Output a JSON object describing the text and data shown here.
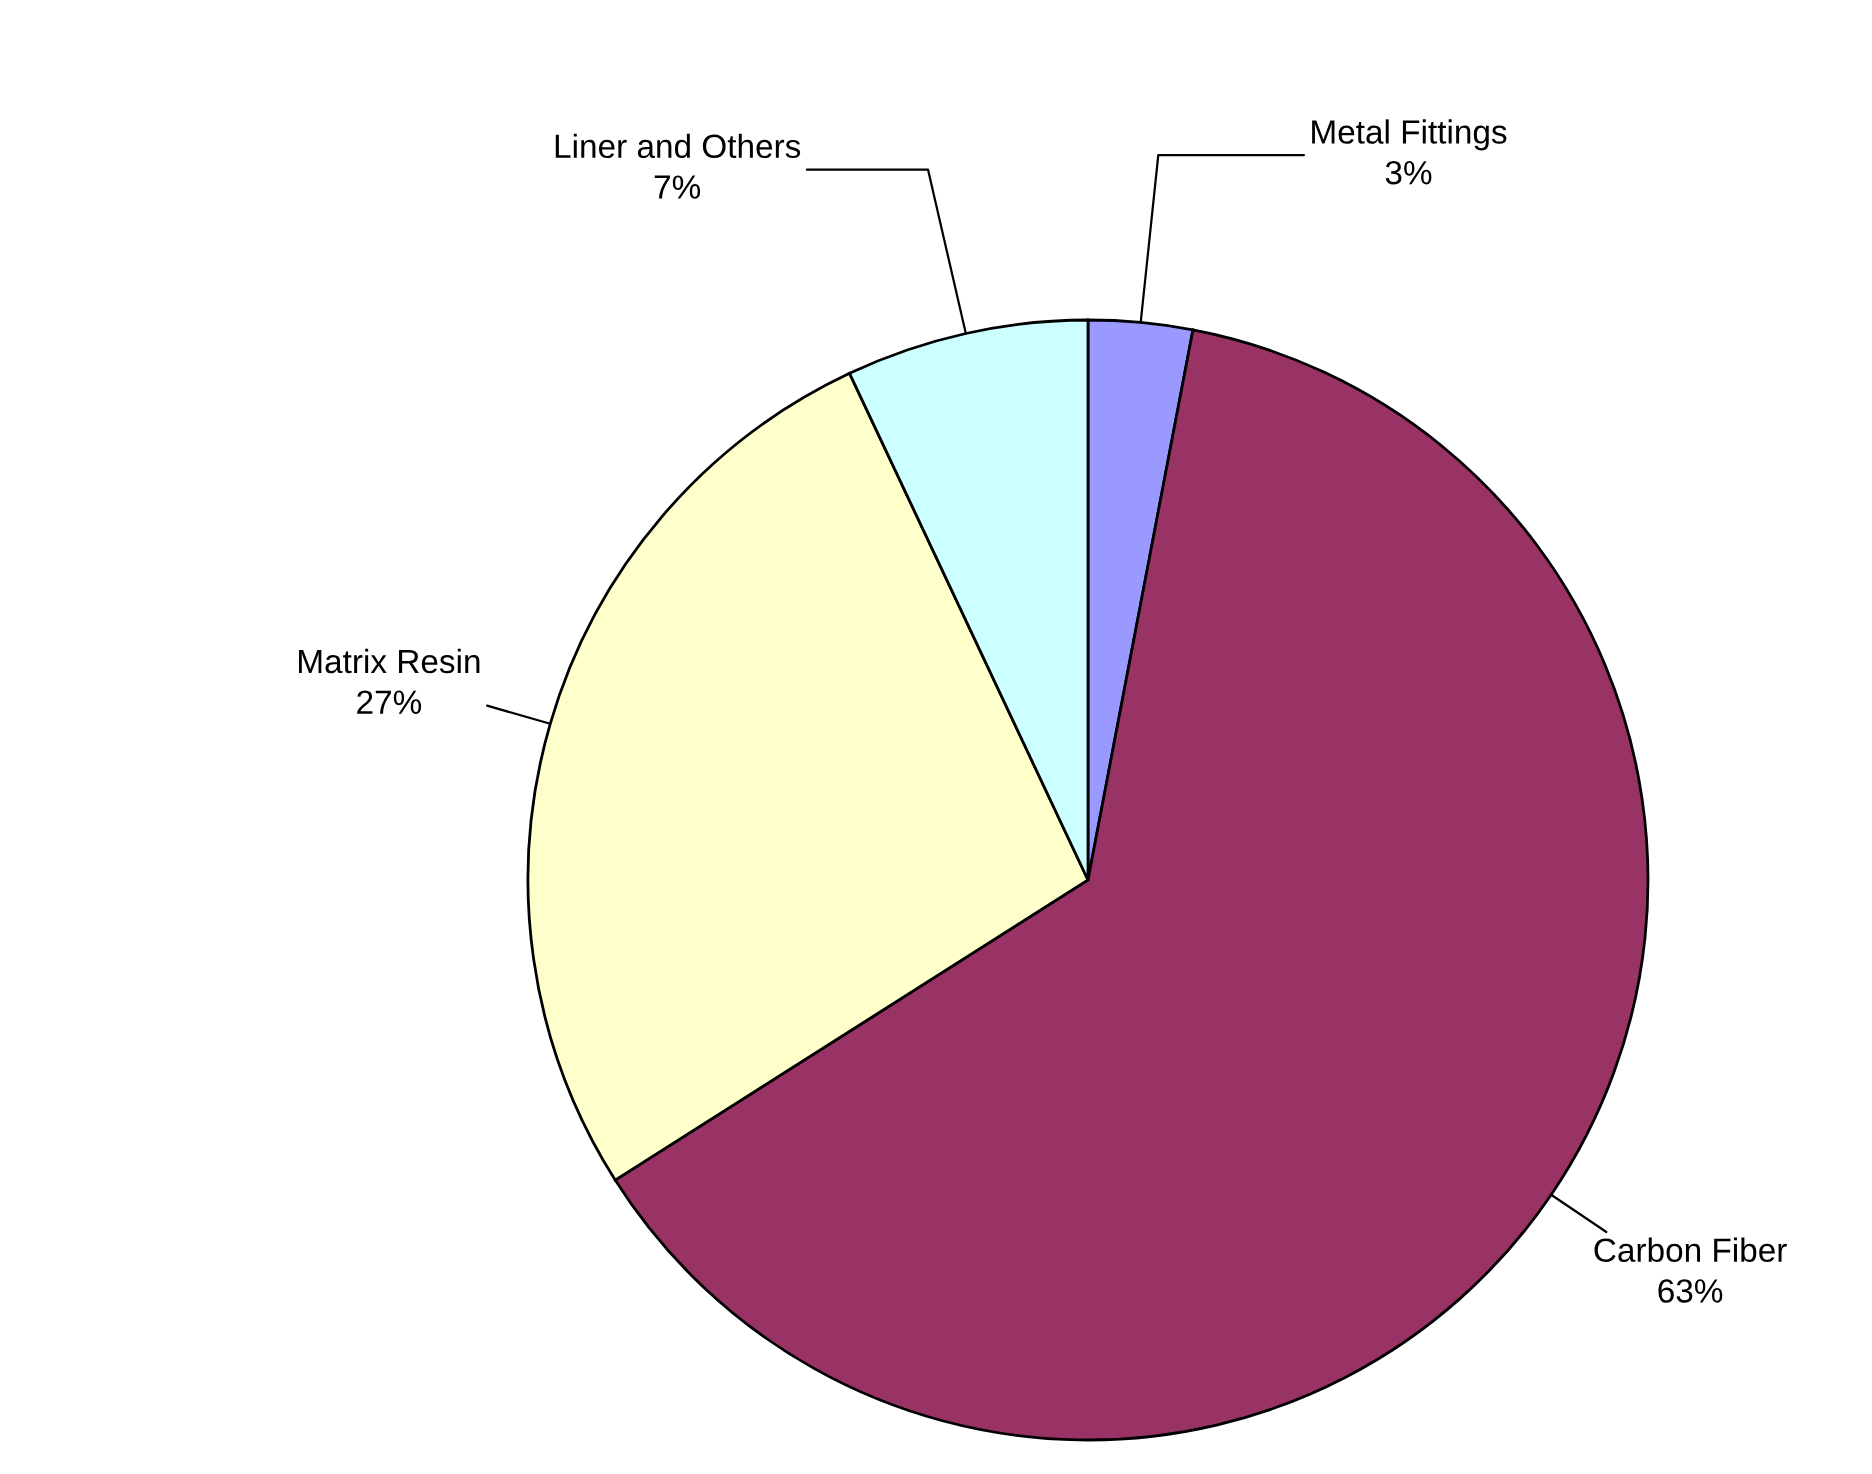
{
  "chart_data": {
    "type": "pie",
    "categories": [
      "Metal Fittings",
      "Carbon Fiber",
      "Matrix Resin",
      "Liner and Others"
    ],
    "values": [
      3,
      63,
      27,
      7
    ],
    "value_labels": [
      "3%",
      "63%",
      "27%",
      "7%"
    ],
    "colors": [
      "#9999ff",
      "#993366",
      "#ffffcc",
      "#ccffff"
    ],
    "legend": false
  }
}
